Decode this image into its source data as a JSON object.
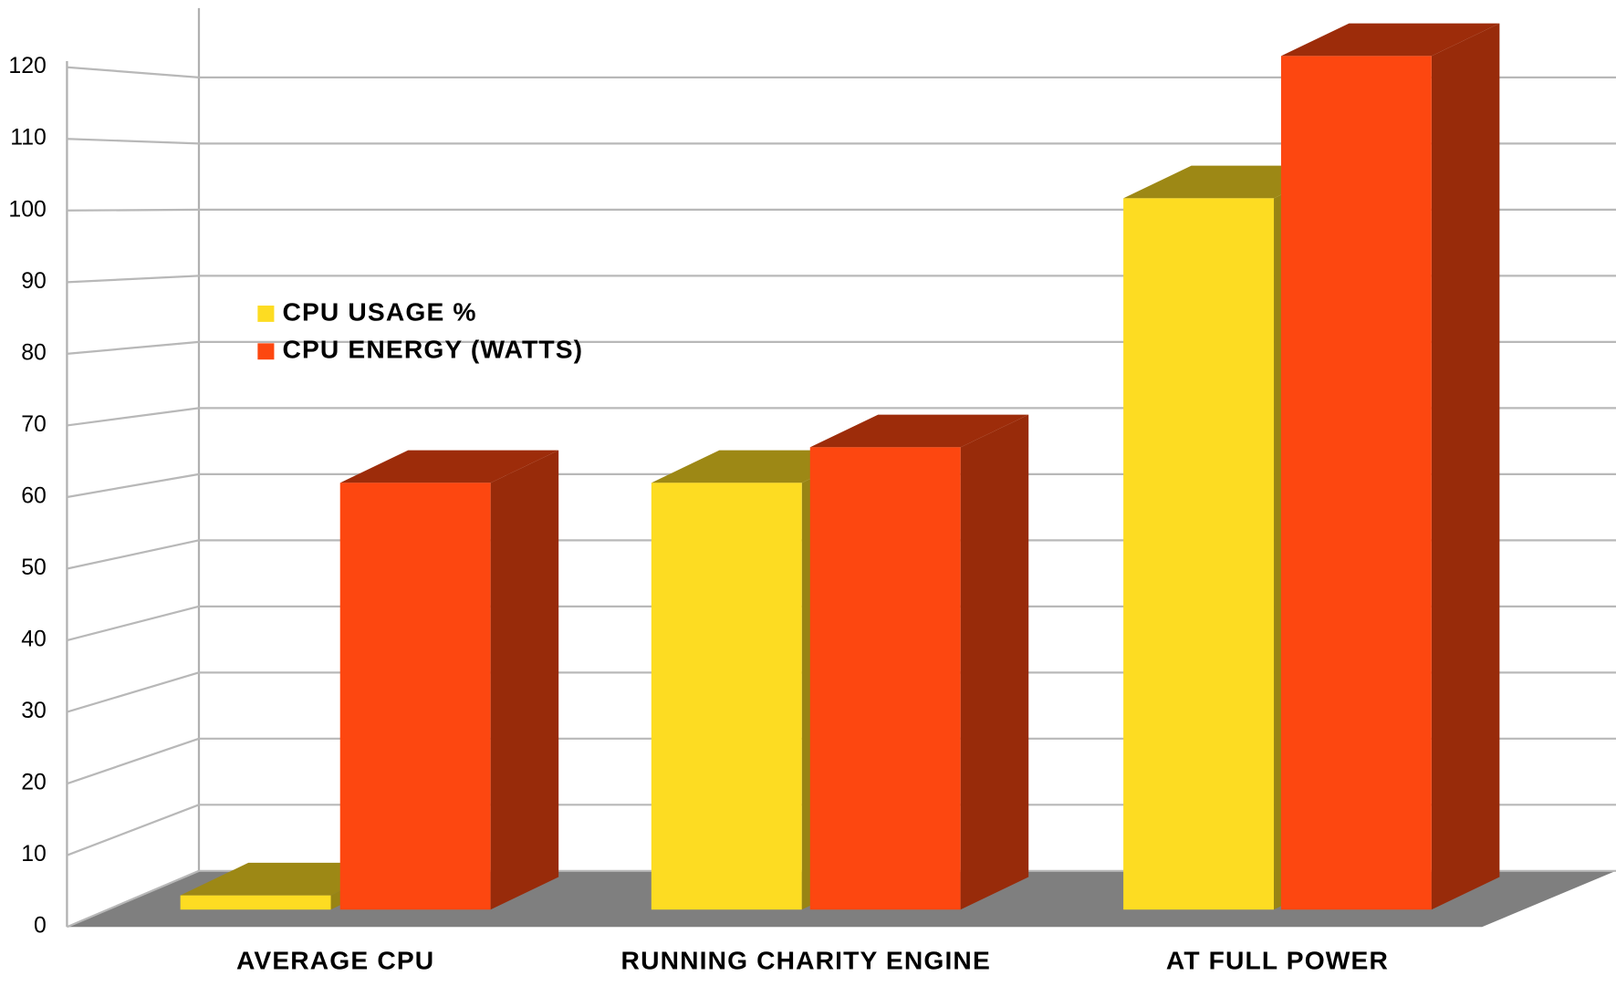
{
  "chart_data": {
    "type": "bar",
    "categories": [
      "AVERAGE CPU",
      "RUNNING CHARITY ENGINE",
      "AT FULL POWER"
    ],
    "series": [
      {
        "name": "CPU USAGE %",
        "color": "#fddc22",
        "values": [
          2,
          60,
          100
        ]
      },
      {
        "name": "CPU ENERGY (WATTS)",
        "color": "#fd4710",
        "values": [
          60,
          65,
          120
        ]
      }
    ],
    "ylim": [
      0,
      120
    ],
    "yticks": [
      0,
      10,
      20,
      30,
      40,
      50,
      60,
      70,
      80,
      90,
      100,
      110,
      120
    ],
    "grid": true,
    "legend": "upper left"
  }
}
